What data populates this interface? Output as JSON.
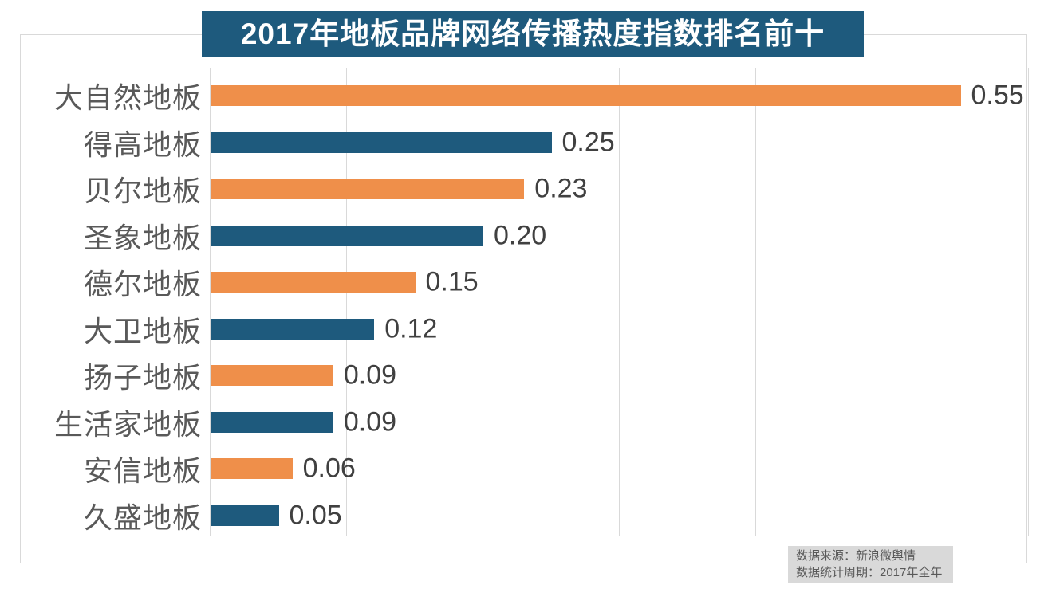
{
  "page": {
    "background": "#ffffff"
  },
  "title_box": {
    "text": "2017年地板品牌网络传播热度指数排名前十",
    "bg_color": "#1e5a7d",
    "text_color": "#ffffff"
  },
  "footer_note": {
    "line1": "数据来源：新浪微舆情",
    "line2": "数据统计周期：2017年全年",
    "bg_color": "#d9d9d9",
    "text_color": "#595959"
  },
  "chart_data": {
    "type": "bar",
    "orientation": "horizontal",
    "title": "2017年地板品牌网络传播热度指数排名前十",
    "categories": [
      "大自然地板",
      "得高地板",
      "贝尔地板",
      "圣象地板",
      "德尔地板",
      "大卫地板",
      "扬子地板",
      "生活家地板",
      "安信地板",
      "久盛地板"
    ],
    "values": [
      0.55,
      0.25,
      0.23,
      0.2,
      0.15,
      0.12,
      0.09,
      0.09,
      0.06,
      0.05
    ],
    "value_labels": [
      "0.55",
      "0.25",
      "0.23",
      "0.20",
      "0.15",
      "0.12",
      "0.09",
      "0.09",
      "0.06",
      "0.05"
    ],
    "bar_colors": [
      "#ef8f4a",
      "#1e5a7d",
      "#ef8f4a",
      "#1e5a7d",
      "#ef8f4a",
      "#1e5a7d",
      "#ef8f4a",
      "#1e5a7d",
      "#ef8f4a",
      "#1e5a7d"
    ],
    "xlabel": "",
    "ylabel": "",
    "xlim": [
      0,
      0.6
    ],
    "gridline_step": 0.1,
    "grid": "vertical-only",
    "gridline_color": "#d9d9d9",
    "legend": false,
    "data_labels_position": "end-of-bar",
    "category_label_color": "#595959",
    "value_label_color": "#404040"
  }
}
